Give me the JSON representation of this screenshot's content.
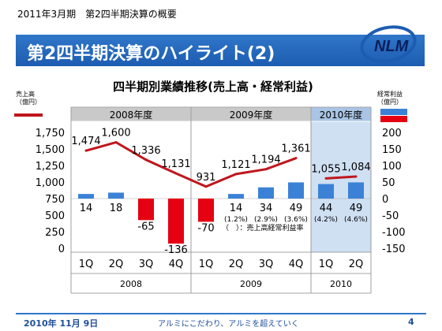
{
  "header": {
    "breadcrumb": "2011年3月期　第2四半期決算の概要",
    "title": "第2四半期決算のハイライト(2)",
    "logo_text": "NLM"
  },
  "footer": {
    "date": "2010年 11月 9日",
    "slogan": "アルミにこだわり、アルミを超えていく",
    "page_number": "4"
  },
  "colors": {
    "revenue_line": "#c0161d",
    "profit_positive": "#3b82d6",
    "profit_negative": "#e50012",
    "header_blue": "#2f76c9",
    "highlight_panel": "#cfe0f3"
  },
  "chart_data": {
    "type": "bar+line",
    "title": "四半期別業績推移(売上高・経常利益)",
    "left_axis": {
      "label": "売上高\n（億円）",
      "ylim": [
        0,
        1750
      ],
      "ticks": [
        "0",
        "250",
        "500",
        "750",
        "1,000",
        "1,250",
        "1,500",
        "1,750"
      ]
    },
    "right_axis": {
      "label": "経常利益\n（億円）",
      "ylim": [
        -150,
        200
      ],
      "ticks": [
        "-150",
        "-100",
        "-50",
        "0",
        "50",
        "100",
        "150",
        "200"
      ]
    },
    "fiscal_years": [
      {
        "label": "2008年度",
        "quarters": 4
      },
      {
        "label": "2009年度",
        "quarters": 4
      },
      {
        "label": "2010年度",
        "quarters": 2
      }
    ],
    "calendar_years": [
      {
        "label": "2008",
        "quarters": 4
      },
      {
        "label": "2009",
        "quarters": 4
      },
      {
        "label": "2010",
        "quarters": 2
      }
    ],
    "categories": [
      "1Q",
      "2Q",
      "3Q",
      "4Q",
      "1Q",
      "2Q",
      "3Q",
      "4Q",
      "1Q",
      "2Q"
    ],
    "series": [
      {
        "name": "売上高",
        "kind": "line",
        "axis": "left",
        "values": [
          1474,
          1600,
          1336,
          1131,
          931,
          1121,
          1194,
          1361,
          1055,
          1084
        ],
        "labels": [
          "1,474",
          "1,600",
          "1,336",
          "1,131",
          "931",
          "1,121",
          "1,194",
          "1,361",
          "1,055",
          "1,084"
        ]
      },
      {
        "name": "経常利益",
        "kind": "bar",
        "axis": "right",
        "values": [
          14,
          18,
          -65,
          -136,
          -70,
          14,
          34,
          49,
          44,
          49
        ],
        "labels": [
          "14",
          "18",
          "-65",
          "-136",
          "-70",
          "14",
          "34",
          "49",
          "44",
          "49"
        ],
        "margins": [
          "",
          "",
          "",
          "",
          "",
          "(1.2%)",
          "(2.9%)",
          "(3.6%)",
          "(4.2%)",
          "(4.6%)"
        ]
      }
    ],
    "annotation": "（　）：売上高経常利益率"
  }
}
